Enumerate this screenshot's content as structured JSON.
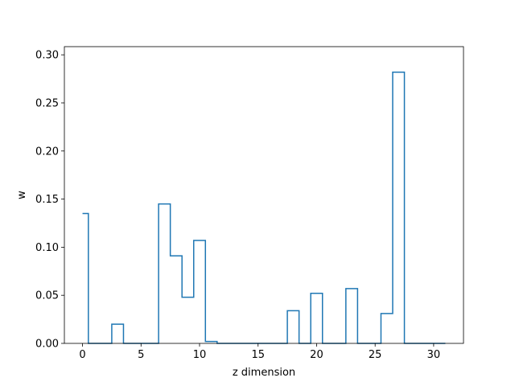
{
  "chart_data": {
    "type": "line",
    "drawstyle": "steps-mid",
    "title": "",
    "xlabel": "z dimension",
    "ylabel": "w",
    "xlim": [
      -1.55,
      32.55
    ],
    "ylim": [
      0.0,
      0.3085
    ],
    "xticks": [
      0,
      5,
      10,
      15,
      20,
      25,
      30
    ],
    "xtick_labels": [
      "0",
      "5",
      "10",
      "15",
      "20",
      "25",
      "30"
    ],
    "yticks": [
      0.0,
      0.05,
      0.1,
      0.15,
      0.2,
      0.25,
      0.3
    ],
    "ytick_labels": [
      "0.00",
      "0.05",
      "0.10",
      "0.15",
      "0.20",
      "0.25",
      "0.30"
    ],
    "grid": false,
    "legend": "none",
    "series": [
      {
        "color": "#1f77b4",
        "x": [
          0,
          1,
          2,
          3,
          4,
          5,
          6,
          7,
          8,
          9,
          10,
          11,
          12,
          13,
          14,
          15,
          16,
          17,
          18,
          19,
          20,
          21,
          22,
          23,
          24,
          25,
          26,
          27,
          28,
          29,
          30,
          31
        ],
        "y": [
          0.135,
          0.0,
          0.0,
          0.02,
          0.0,
          0.0,
          0.0,
          0.145,
          0.091,
          0.048,
          0.107,
          0.002,
          0.0,
          0.0,
          0.0,
          0.0,
          0.0,
          0.0,
          0.034,
          0.0,
          0.052,
          0.0,
          0.0,
          0.057,
          0.0,
          0.0,
          0.031,
          0.282,
          0.0,
          0.0,
          0.0,
          0.0
        ]
      }
    ]
  }
}
